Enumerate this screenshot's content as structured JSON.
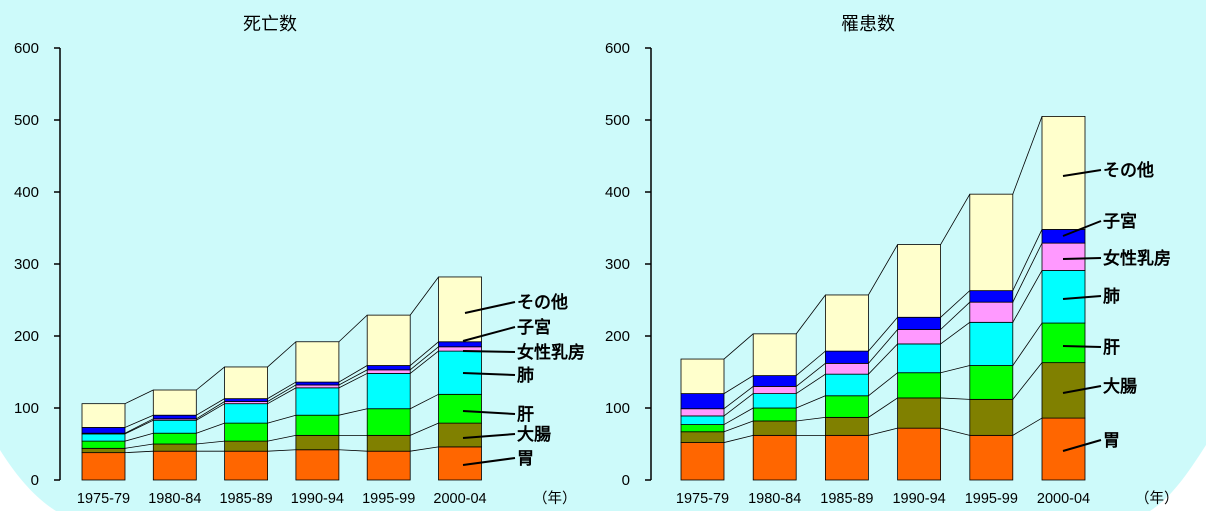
{
  "background": "#cdfafa",
  "chart_data": [
    {
      "type": "bar",
      "stacked": true,
      "title": "死亡数",
      "categories": [
        "1975-79",
        "1980-84",
        "1985-89",
        "1990-94",
        "1995-99",
        "2000-04"
      ],
      "xunit": "（年）",
      "ylim": [
        0,
        600
      ],
      "yticks": [
        "0",
        "100",
        "200",
        "300",
        "400",
        "500",
        "600"
      ],
      "series": [
        {
          "name": "胃",
          "color": "#ff6600",
          "values": [
            38,
            40,
            40,
            42,
            40,
            46
          ]
        },
        {
          "name": "大腸",
          "color": "#808000",
          "values": [
            6,
            10,
            14,
            20,
            22,
            33
          ]
        },
        {
          "name": "肝",
          "color": "#00ff00",
          "values": [
            10,
            15,
            25,
            28,
            37,
            40
          ]
        },
        {
          "name": "肺",
          "color": "#00ffff",
          "values": [
            10,
            18,
            27,
            38,
            49,
            60
          ]
        },
        {
          "name": "女性乳房",
          "color": "#ff99ff",
          "values": [
            1,
            2,
            3,
            4,
            5,
            6
          ]
        },
        {
          "name": "子宮",
          "color": "#0000ff",
          "values": [
            8,
            5,
            4,
            4,
            6,
            7
          ]
        },
        {
          "name": "その他",
          "color": "#ffffcc",
          "values": [
            33,
            35,
            44,
            56,
            70,
            90
          ]
        }
      ]
    },
    {
      "type": "bar",
      "stacked": true,
      "title": "罹患数",
      "categories": [
        "1975-79",
        "1980-84",
        "1985-89",
        "1990-94",
        "1995-99",
        "2000-04"
      ],
      "xunit": "（年）",
      "ylim": [
        0,
        600
      ],
      "yticks": [
        "0",
        "100",
        "200",
        "300",
        "400",
        "500",
        "600"
      ],
      "series": [
        {
          "name": "胃",
          "color": "#ff6600",
          "values": [
            52,
            62,
            62,
            72,
            62,
            86
          ]
        },
        {
          "name": "大腸",
          "color": "#808000",
          "values": [
            15,
            20,
            25,
            42,
            50,
            77
          ]
        },
        {
          "name": "肝",
          "color": "#00ff00",
          "values": [
            10,
            18,
            30,
            35,
            47,
            55
          ]
        },
        {
          "name": "肺",
          "color": "#00ffff",
          "values": [
            12,
            20,
            30,
            40,
            60,
            73
          ]
        },
        {
          "name": "女性乳房",
          "color": "#ff99ff",
          "values": [
            10,
            10,
            15,
            20,
            28,
            38
          ]
        },
        {
          "name": "子宮",
          "color": "#0000ff",
          "values": [
            21,
            15,
            17,
            17,
            16,
            19
          ]
        },
        {
          "name": "その他",
          "color": "#ffffcc",
          "values": [
            48,
            58,
            78,
            101,
            134,
            157
          ]
        }
      ]
    }
  ]
}
